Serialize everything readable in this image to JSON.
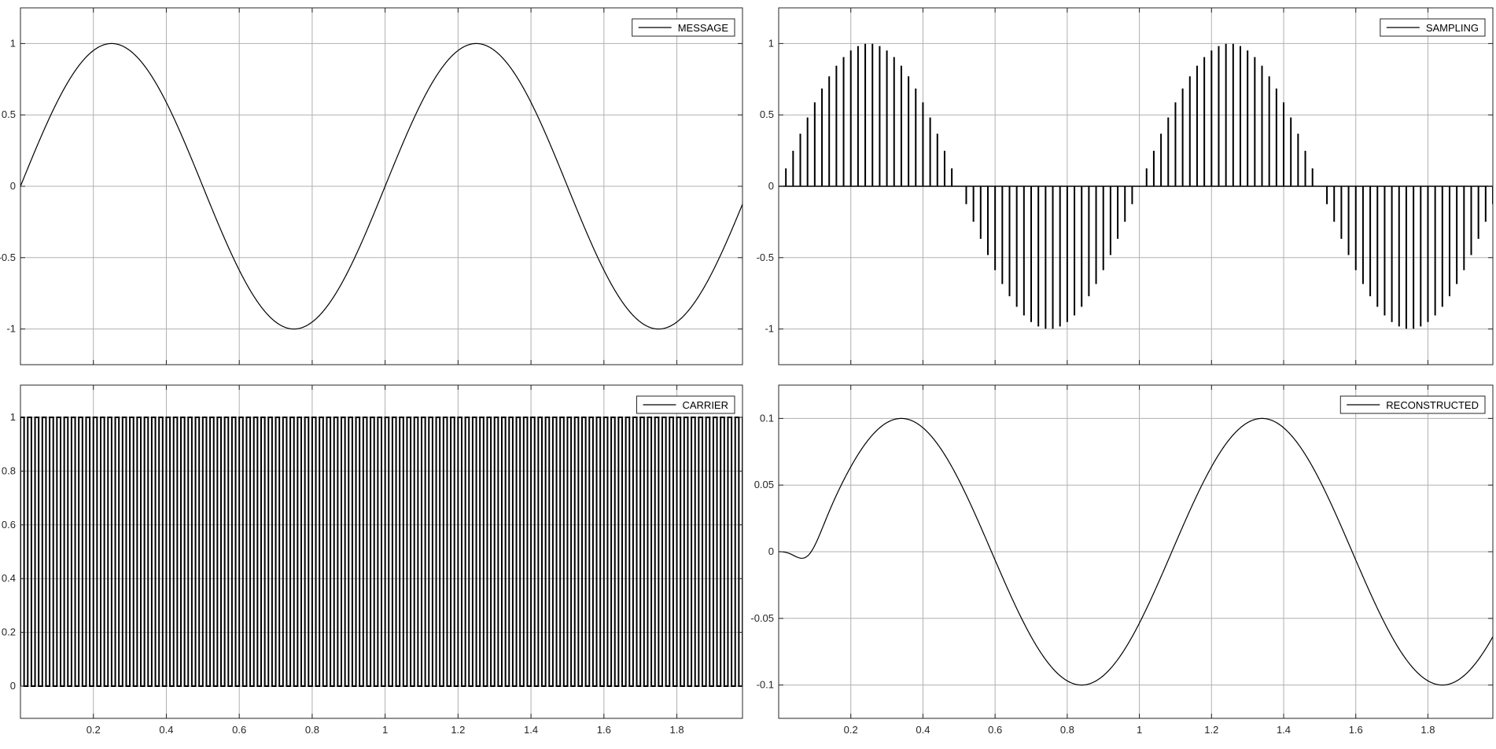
{
  "figure": {
    "background": "#ffffff",
    "line_color": "#000000",
    "grid_color": "#b0b0b0",
    "axes_color": "#262626"
  },
  "chart_data": [
    {
      "type": "line",
      "id": "message",
      "legend": [
        "MESSAGE"
      ],
      "legend_position": "top-right",
      "grid": true,
      "xlim": [
        0,
        1.98
      ],
      "ylim": [
        -1.25,
        1.25
      ],
      "xticks": [
        0.2,
        0.4,
        0.6,
        0.8,
        1,
        1.2,
        1.4,
        1.6,
        1.8
      ],
      "xtick_labels_shown": false,
      "yticks": [
        -1,
        -0.5,
        0,
        0.5,
        1
      ],
      "ytick_labels": [
        "-1",
        "-0.5",
        "0",
        "0.5",
        "1"
      ],
      "function": "sin(2*pi*1*t)",
      "frequency_hz": 1,
      "amplitude": 1,
      "xlabel": "",
      "ylabel": "",
      "title": ""
    },
    {
      "type": "stem",
      "id": "sampling",
      "legend": [
        "SAMPLING"
      ],
      "legend_position": "top-right",
      "grid": true,
      "xlim": [
        0,
        1.98
      ],
      "ylim": [
        -1.25,
        1.25
      ],
      "xticks": [
        0.2,
        0.4,
        0.6,
        0.8,
        1,
        1.2,
        1.4,
        1.6,
        1.8
      ],
      "xtick_labels_shown": false,
      "yticks": [
        -1,
        -0.5,
        0,
        0.5,
        1
      ],
      "ytick_labels": [
        "-1",
        "-0.5",
        "0",
        "0.5",
        "1"
      ],
      "function": "sin(2*pi*1*t) sampled",
      "sample_interval": 0.02,
      "amplitude": 1,
      "xlabel": "",
      "ylabel": "",
      "title": ""
    },
    {
      "type": "pulse",
      "id": "carrier",
      "legend": [
        "CARRIER"
      ],
      "legend_position": "top-right",
      "grid": true,
      "xlim": [
        0,
        1.98
      ],
      "ylim": [
        -0.12,
        1.12
      ],
      "xticks": [
        0.2,
        0.4,
        0.6,
        0.8,
        1,
        1.2,
        1.4,
        1.6,
        1.8
      ],
      "xtick_labels": [
        "0.2",
        "0.4",
        "0.6",
        "0.8",
        "1",
        "1.2",
        "1.4",
        "1.6",
        "1.8"
      ],
      "yticks": [
        0,
        0.2,
        0.4,
        0.6,
        0.8,
        1
      ],
      "ytick_labels": [
        "0",
        "0.2",
        "0.4",
        "0.6",
        "0.8",
        "1"
      ],
      "pulse_period": 0.02,
      "pulse_width": 0.01,
      "low": 0,
      "high": 1,
      "xlabel": "",
      "ylabel": "",
      "title": ""
    },
    {
      "type": "line",
      "id": "reconstructed",
      "legend": [
        "RECONSTRUCTED"
      ],
      "legend_position": "top-right",
      "grid": true,
      "xlim": [
        0,
        1.98
      ],
      "ylim": [
        -0.125,
        0.125
      ],
      "xticks": [
        0.2,
        0.4,
        0.6,
        0.8,
        1,
        1.2,
        1.4,
        1.6,
        1.8
      ],
      "xtick_labels": [
        "0.2",
        "0.4",
        "0.6",
        "0.8",
        "1",
        "1.2",
        "1.4",
        "1.6",
        "1.8"
      ],
      "yticks": [
        -0.1,
        -0.05,
        0,
        0.05,
        0.1
      ],
      "ytick_labels": [
        "-0.1",
        "-0.05",
        "0",
        "0.05",
        "0.1"
      ],
      "function": "0.1*sin(2*pi*1*(t-0.09)) with startup transient",
      "amplitude": 0.1,
      "delay": 0.09,
      "xlabel": "",
      "ylabel": "",
      "title": ""
    }
  ]
}
